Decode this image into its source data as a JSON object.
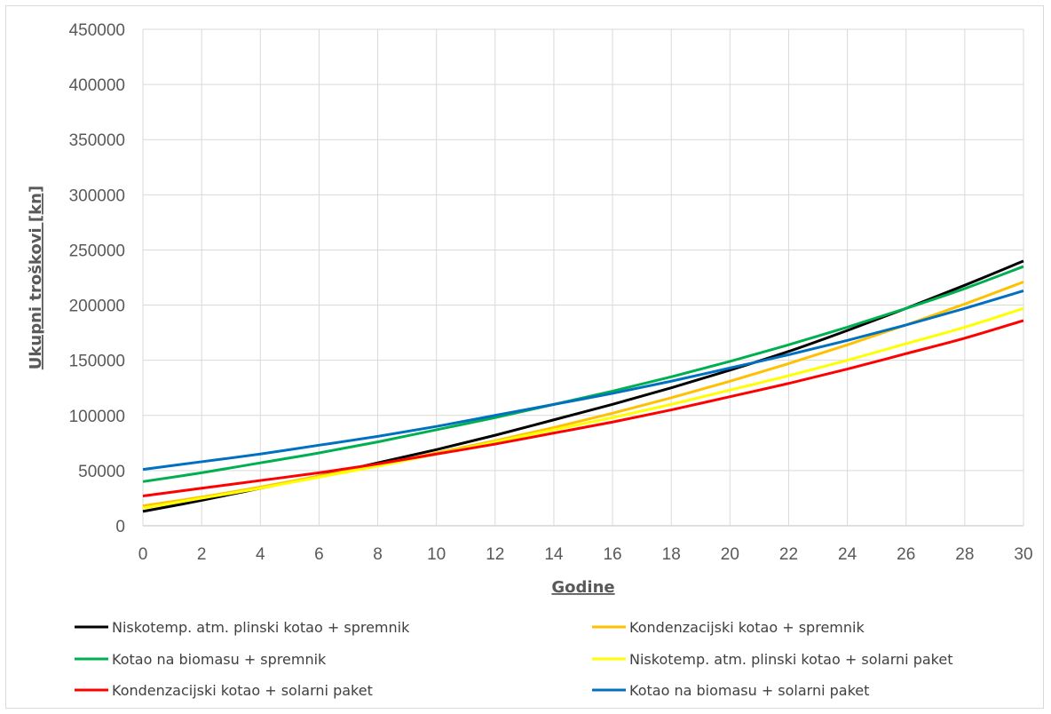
{
  "chart_data": {
    "type": "line",
    "title": "",
    "xlabel": "Godine",
    "ylabel": "Ukupni troškovi [kn]",
    "xlim": [
      0,
      30
    ],
    "ylim": [
      0,
      450000
    ],
    "x_ticks": [
      "0",
      "2",
      "4",
      "6",
      "8",
      "10",
      "12",
      "14",
      "16",
      "18",
      "20",
      "22",
      "24",
      "26",
      "28",
      "30"
    ],
    "y_ticks": [
      "0",
      "50000",
      "100000",
      "150000",
      "200000",
      "250000",
      "300000",
      "350000",
      "400000",
      "450000"
    ],
    "grid": true,
    "legend_position": "bottom",
    "x": [
      0,
      2,
      4,
      6,
      8,
      10,
      12,
      14,
      16,
      18,
      20,
      22,
      24,
      26,
      28,
      30
    ],
    "series": [
      {
        "name": "Niskotemp. atm. plinski kotao + spremnik",
        "color": "#000000",
        "values": [
          13000,
          23000,
          34000,
          45000,
          57000,
          69000,
          82000,
          96000,
          110000,
          125000,
          141000,
          158000,
          177000,
          197000,
          218000,
          240000
        ]
      },
      {
        "name": "Kondenzacijski kotao + spremnik",
        "color": "#ffc000",
        "values": [
          18000,
          26000,
          35000,
          45000,
          55000,
          66000,
          77000,
          89000,
          102000,
          116000,
          131000,
          147000,
          164000,
          182000,
          201000,
          221000
        ]
      },
      {
        "name": "Kotao na biomasu + spremnik",
        "color": "#00b050",
        "values": [
          40000,
          48000,
          57000,
          66000,
          76000,
          87000,
          98000,
          110000,
          122000,
          135000,
          149000,
          164000,
          180000,
          197000,
          215000,
          235000
        ]
      },
      {
        "name": "Niskotemp. atm. plinski kotao + solarni paket",
        "color": "#ffff00",
        "values": [
          16000,
          25000,
          34000,
          44000,
          54000,
          65000,
          76000,
          87000,
          98000,
          110000,
          123000,
          136000,
          150000,
          165000,
          180000,
          197000
        ]
      },
      {
        "name": "Kondenzacijski kotao + solarni paket",
        "color": "#ff0000",
        "values": [
          27000,
          34000,
          41000,
          48000,
          56000,
          65000,
          74000,
          84000,
          94000,
          105000,
          117000,
          129000,
          142000,
          156000,
          170000,
          186000
        ]
      },
      {
        "name": "Kotao na biomasu + solarni paket",
        "color": "#0070c0",
        "values": [
          51000,
          58000,
          65000,
          73000,
          81000,
          90000,
          100000,
          110000,
          120000,
          131000,
          143000,
          155000,
          168000,
          182000,
          197000,
          213000
        ]
      }
    ]
  }
}
